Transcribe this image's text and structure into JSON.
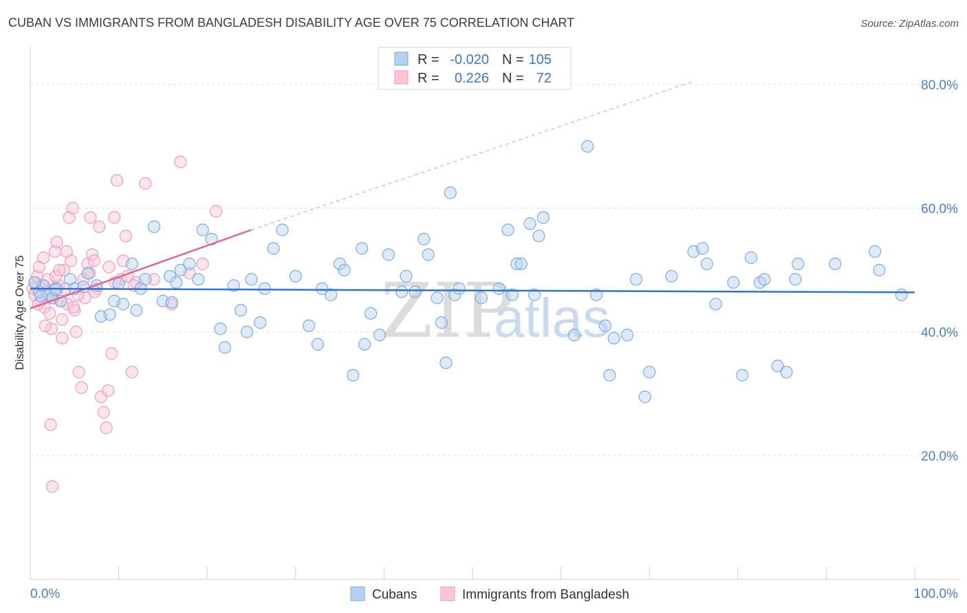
{
  "header": {
    "title": "CUBAN VS IMMIGRANTS FROM BANGLADESH DISABILITY AGE OVER 75 CORRELATION CHART",
    "source": "Source: ZipAtlas.com"
  },
  "legend": {
    "rows": [
      {
        "r_label": "R =",
        "r_value": "-0.020",
        "n_label": "N =",
        "n_value": "105"
      },
      {
        "r_label": "R =",
        "r_value": "0.226",
        "n_label": "N =",
        "n_value": "72"
      }
    ]
  },
  "watermark": {
    "zip": "ZIP",
    "atlas": "atlas"
  },
  "bottom_legend": [
    "Cubans",
    "Immigrants from Bangladesh"
  ],
  "colors": {
    "cubans": "#7aaae6",
    "bangladesh": "#f29ab8",
    "cubans_line": "#2f72d2",
    "bangladesh_line": "#e8628f",
    "tick_text": "#4a7cc9"
  },
  "chart_data": {
    "type": "scatter",
    "title": "CUBAN VS IMMIGRANTS FROM BANGLADESH DISABILITY AGE OVER 75 CORRELATION CHART",
    "xlabel": "",
    "ylabel": "Disability Age Over 75",
    "xlim": [
      0,
      100
    ],
    "ylim": [
      0,
      85
    ],
    "x_tick_labels": [
      "0.0%",
      "100.0%"
    ],
    "y_ticks": [
      20,
      40,
      60,
      80
    ],
    "y_tick_labels": [
      "20.0%",
      "40.0%",
      "60.0%",
      "80.0%"
    ],
    "grid": true,
    "legend_position": "top-center",
    "series": [
      {
        "name": "Cubans",
        "r": -0.02,
        "n": 105,
        "trend": {
          "x": [
            0,
            100
          ],
          "y": [
            47.0,
            46.4
          ]
        },
        "points": [
          [
            1.0,
            46.5
          ],
          [
            1.5,
            47.5
          ],
          [
            2.0,
            46.0
          ],
          [
            2.5,
            45.5
          ],
          [
            3.0,
            47.0
          ],
          [
            3.5,
            45.0
          ],
          [
            4.5,
            48.5
          ],
          [
            5.0,
            47.0
          ],
          [
            6.5,
            49.5
          ],
          [
            7.5,
            47.5
          ],
          [
            8.0,
            42.5
          ],
          [
            9.0,
            42.8
          ],
          [
            9.5,
            45.0
          ],
          [
            10.5,
            44.5
          ],
          [
            11.5,
            51.0
          ],
          [
            12.5,
            47.0
          ],
          [
            13.0,
            48.5
          ],
          [
            14.0,
            57.0
          ],
          [
            15.0,
            45.0
          ],
          [
            15.8,
            49.0
          ],
          [
            16.5,
            48.0
          ],
          [
            17.0,
            50.0
          ],
          [
            18.0,
            51.0
          ],
          [
            19.0,
            48.5
          ],
          [
            19.5,
            56.5
          ],
          [
            20.5,
            55.0
          ],
          [
            21.5,
            40.5
          ],
          [
            22.0,
            37.5
          ],
          [
            23.0,
            47.5
          ],
          [
            23.8,
            43.5
          ],
          [
            24.5,
            40.0
          ],
          [
            25.0,
            48.5
          ],
          [
            26.0,
            41.5
          ],
          [
            26.5,
            47.0
          ],
          [
            27.5,
            53.5
          ],
          [
            28.5,
            56.5
          ],
          [
            30.0,
            49.0
          ],
          [
            31.5,
            41.0
          ],
          [
            32.5,
            38.0
          ],
          [
            33.0,
            47.0
          ],
          [
            34.0,
            46.0
          ],
          [
            35.0,
            51.0
          ],
          [
            35.5,
            50.0
          ],
          [
            36.5,
            33.0
          ],
          [
            37.5,
            53.5
          ],
          [
            37.8,
            38.0
          ],
          [
            38.5,
            43.0
          ],
          [
            39.5,
            39.5
          ],
          [
            40.5,
            52.5
          ],
          [
            42.0,
            46.5
          ],
          [
            42.5,
            49.0
          ],
          [
            43.5,
            46.5
          ],
          [
            44.5,
            55.0
          ],
          [
            45.0,
            52.5
          ],
          [
            46.0,
            45.5
          ],
          [
            46.5,
            41.5
          ],
          [
            47.0,
            35.0
          ],
          [
            47.5,
            62.5
          ],
          [
            48.0,
            46.0
          ],
          [
            48.5,
            47.0
          ],
          [
            51.0,
            45.5
          ],
          [
            53.0,
            47.0
          ],
          [
            54.0,
            56.5
          ],
          [
            54.5,
            46.0
          ],
          [
            55.0,
            51.0
          ],
          [
            55.5,
            51.0
          ],
          [
            56.5,
            57.5
          ],
          [
            57.0,
            46.0
          ],
          [
            57.5,
            55.5
          ],
          [
            58.0,
            58.5
          ],
          [
            61.5,
            39.5
          ],
          [
            63.0,
            70.0
          ],
          [
            65.0,
            41.0
          ],
          [
            65.5,
            33.0
          ],
          [
            66.0,
            39.0
          ],
          [
            67.5,
            39.5
          ],
          [
            68.5,
            48.5
          ],
          [
            69.5,
            29.5
          ],
          [
            70.0,
            33.5
          ],
          [
            72.5,
            49.0
          ],
          [
            75.0,
            53.0
          ],
          [
            76.0,
            53.5
          ],
          [
            76.5,
            51.0
          ],
          [
            77.5,
            44.5
          ],
          [
            79.5,
            48.0
          ],
          [
            80.5,
            33.0
          ],
          [
            81.5,
            52.0
          ],
          [
            82.5,
            48.0
          ],
          [
            83.0,
            48.5
          ],
          [
            84.5,
            34.5
          ],
          [
            85.5,
            33.5
          ],
          [
            86.5,
            48.5
          ],
          [
            86.8,
            51.0
          ],
          [
            91.0,
            51.0
          ],
          [
            95.5,
            53.0
          ],
          [
            96.0,
            50.0
          ],
          [
            98.5,
            46.0
          ],
          [
            0.5,
            48.0
          ],
          [
            1.2,
            45.8
          ],
          [
            2.8,
            46.8
          ],
          [
            6.0,
            47.3
          ],
          [
            10.0,
            47.8
          ],
          [
            12.0,
            43.5
          ],
          [
            16.0,
            44.8
          ],
          [
            64.0,
            46.0
          ]
        ]
      },
      {
        "name": "Immigrants from Bangladesh",
        "r": 0.226,
        "n": 72,
        "trend": {
          "x": [
            0,
            25
          ],
          "y": [
            43.8,
            56.5
          ]
        },
        "trend_extended": {
          "x": [
            25,
            75
          ],
          "y": [
            56.5,
            80.5
          ]
        },
        "points": [
          [
            0.3,
            47.0
          ],
          [
            0.5,
            46.0
          ],
          [
            0.6,
            48.0
          ],
          [
            0.8,
            49.0
          ],
          [
            1.0,
            50.5
          ],
          [
            1.2,
            45.0
          ],
          [
            1.4,
            47.5
          ],
          [
            1.6,
            44.0
          ],
          [
            1.8,
            46.5
          ],
          [
            2.0,
            48.5
          ],
          [
            2.2,
            43.0
          ],
          [
            2.4,
            40.5
          ],
          [
            2.6,
            45.5
          ],
          [
            2.8,
            53.0
          ],
          [
            3.0,
            54.5
          ],
          [
            3.2,
            47.5
          ],
          [
            3.4,
            45.0
          ],
          [
            3.6,
            42.0
          ],
          [
            3.8,
            50.0
          ],
          [
            4.0,
            47.0
          ],
          [
            4.2,
            44.5
          ],
          [
            4.4,
            58.5
          ],
          [
            4.6,
            51.5
          ],
          [
            4.8,
            60.0
          ],
          [
            5.0,
            43.5
          ],
          [
            5.2,
            40.0
          ],
          [
            5.5,
            33.5
          ],
          [
            5.8,
            31.0
          ],
          [
            6.0,
            48.5
          ],
          [
            6.2,
            45.5
          ],
          [
            6.5,
            51.0
          ],
          [
            6.8,
            58.5
          ],
          [
            7.0,
            52.5
          ],
          [
            7.2,
            51.5
          ],
          [
            7.5,
            47.0
          ],
          [
            7.8,
            57.0
          ],
          [
            8.0,
            29.5
          ],
          [
            8.3,
            27.0
          ],
          [
            8.6,
            24.5
          ],
          [
            8.9,
            50.5
          ],
          [
            9.2,
            36.5
          ],
          [
            9.5,
            58.5
          ],
          [
            9.8,
            64.5
          ],
          [
            10.2,
            48.5
          ],
          [
            10.5,
            51.5
          ],
          [
            10.8,
            55.5
          ],
          [
            11.0,
            49.0
          ],
          [
            11.5,
            33.5
          ],
          [
            12.0,
            48.0
          ],
          [
            13.0,
            64.0
          ],
          [
            14.0,
            48.5
          ],
          [
            16.0,
            44.5
          ],
          [
            17.0,
            67.5
          ],
          [
            18.0,
            49.5
          ],
          [
            19.5,
            51.0
          ],
          [
            21.0,
            59.5
          ],
          [
            2.5,
            15.0
          ],
          [
            2.3,
            25.0
          ],
          [
            1.7,
            41.0
          ],
          [
            3.6,
            39.0
          ],
          [
            4.9,
            44.0
          ],
          [
            5.4,
            46.0
          ],
          [
            0.9,
            44.5
          ],
          [
            1.5,
            52.0
          ],
          [
            2.9,
            49.0
          ],
          [
            3.3,
            50.0
          ],
          [
            4.1,
            53.0
          ],
          [
            6.7,
            49.5
          ],
          [
            7.3,
            46.5
          ],
          [
            8.8,
            30.5
          ],
          [
            9.6,
            48.0
          ],
          [
            11.7,
            47.5
          ]
        ]
      }
    ]
  }
}
